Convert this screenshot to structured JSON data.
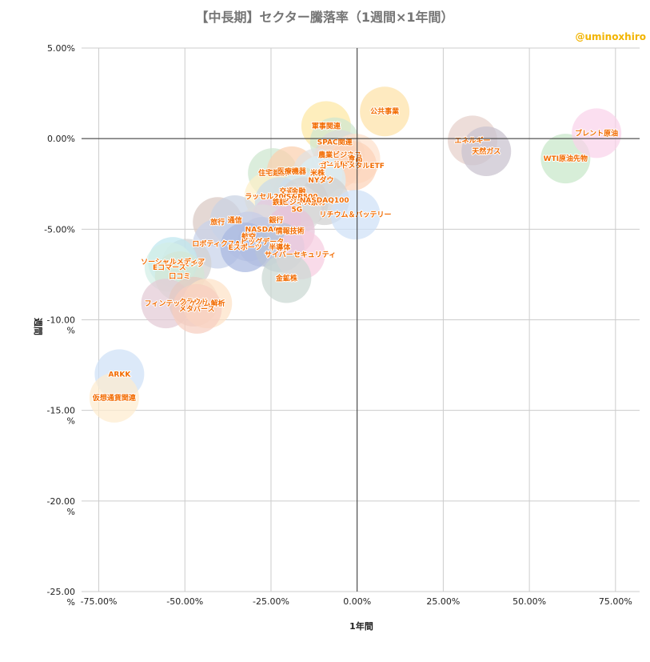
{
  "chart_data": {
    "type": "scatter",
    "title": "【中長期】セクター騰落率（1週間×1年間）",
    "credit": "@uminoxhiro",
    "xlabel": "1年間",
    "ylabel": "週間",
    "xlim": [
      -0.8,
      0.82
    ],
    "ylim": [
      -0.25,
      0.05
    ],
    "x_ticks": [
      "-75.00%",
      "-50.00%",
      "-25.00%",
      "0.00%",
      "25.00%",
      "50.00%",
      "75.00%"
    ],
    "x_tick_values": [
      -0.75,
      -0.5,
      -0.25,
      0,
      0.25,
      0.5,
      0.75
    ],
    "y_ticks": [
      "5.00%",
      "0.00%",
      "-5.00%",
      "-10.00 %",
      "-15.00 %",
      "-20.00 %",
      "-25.00 %"
    ],
    "y_tick_values": [
      0.05,
      0,
      -0.05,
      -0.1,
      -0.15,
      -0.2,
      -0.25
    ],
    "grid": true,
    "points": [
      {
        "label": "公共事業",
        "x": 0.08,
        "y": 0.015,
        "color": "#fde2a8"
      },
      {
        "label": "軍事関連",
        "x": -0.09,
        "y": 0.007,
        "color": "#fde7a3"
      },
      {
        "label": "SPAC関連",
        "x": -0.065,
        "y": -0.002,
        "color": "#cfe8d0"
      },
      {
        "label": "農業ビジネス",
        "x": -0.05,
        "y": -0.009,
        "color": "#d9d9d9"
      },
      {
        "label": "食品",
        "x": -0.005,
        "y": -0.011,
        "color": "#fde0cc"
      },
      {
        "label": "インドETF",
        "x": -0.06,
        "y": -0.014,
        "color": "#fad7c2"
      },
      {
        "label": "ゴールドメタルETF",
        "x": -0.015,
        "y": -0.015,
        "color": "#fcd2b8"
      },
      {
        "label": "住宅建設",
        "x": -0.245,
        "y": -0.019,
        "color": "#cde6cf"
      },
      {
        "label": "医療機器",
        "x": -0.19,
        "y": -0.018,
        "color": "#fbd0ae"
      },
      {
        "label": "米株",
        "x": -0.115,
        "y": -0.019,
        "color": "#e0e0e0"
      },
      {
        "label": "NYダウ",
        "x": -0.105,
        "y": -0.023,
        "color": "#d8eff7"
      },
      {
        "label": "交通",
        "x": -0.205,
        "y": -0.029,
        "color": "#d9ead3"
      },
      {
        "label": "金融",
        "x": -0.17,
        "y": -0.029,
        "color": "#cfe2cf"
      },
      {
        "label": "ラッセル2000",
        "x": -0.255,
        "y": -0.032,
        "color": "#fdf0c8"
      },
      {
        "label": "S&P500",
        "x": -0.16,
        "y": -0.032,
        "color": "#dbe7f3"
      },
      {
        "label": "鉄鋼",
        "x": -0.225,
        "y": -0.035,
        "color": "#c9d9ea"
      },
      {
        "label": "ビジネス素材",
        "x": -0.155,
        "y": -0.035,
        "color": "#d6d6d6"
      },
      {
        "label": "NASDAQ100",
        "x": -0.095,
        "y": -0.034,
        "color": "#d0d0d0"
      },
      {
        "label": "5G",
        "x": -0.175,
        "y": -0.039,
        "color": "#dcdcdc"
      },
      {
        "label": "リチウム＆バッテリー",
        "x": -0.005,
        "y": -0.042,
        "color": "#cfe0f7"
      },
      {
        "label": "旅行",
        "x": -0.405,
        "y": -0.046,
        "color": "#d9c9c3"
      },
      {
        "label": "通信",
        "x": -0.355,
        "y": -0.045,
        "color": "#c9d3e3"
      },
      {
        "label": "銀行",
        "x": -0.235,
        "y": -0.045,
        "color": "#e6c8de"
      },
      {
        "label": "NASDAQ",
        "x": -0.275,
        "y": -0.05,
        "color": "#dcdcdc"
      },
      {
        "label": "情報技術",
        "x": -0.195,
        "y": -0.051,
        "color": "#e8c3d8"
      },
      {
        "label": "航空",
        "x": -0.315,
        "y": -0.054,
        "color": "#c6cde8"
      },
      {
        "label": "ロボティクスAI",
        "x": -0.405,
        "y": -0.058,
        "color": "#c8d2ea"
      },
      {
        "label": "ビッグデータ",
        "x": -0.275,
        "y": -0.057,
        "color": "#c0c8e0"
      },
      {
        "label": "Eスポーツ",
        "x": -0.325,
        "y": -0.06,
        "color": "#a9b8e0"
      },
      {
        "label": "半導体",
        "x": -0.225,
        "y": -0.06,
        "color": "#b8c4d8"
      },
      {
        "label": "サイバーセキュリティ",
        "x": -0.165,
        "y": -0.064,
        "color": "#f6cde0"
      },
      {
        "label": "ゲーミング",
        "x": -0.495,
        "y": -0.069,
        "color": "#d1d1d1"
      },
      {
        "label": "ソーシャルメディア",
        "x": -0.535,
        "y": -0.068,
        "color": "#bfe8f0"
      },
      {
        "label": "Eコマース",
        "x": -0.545,
        "y": -0.071,
        "color": "#d3eee6"
      },
      {
        "label": "口コミ",
        "x": -0.515,
        "y": -0.076,
        "color": "#d2e6d6"
      },
      {
        "label": "金鉱株",
        "x": -0.205,
        "y": -0.077,
        "color": "#cbd8d2"
      },
      {
        "label": "フィンテック",
        "x": -0.555,
        "y": -0.091,
        "color": "#e3cbd6"
      },
      {
        "label": "クラウド",
        "x": -0.475,
        "y": -0.09,
        "color": "#e5c9c0"
      },
      {
        "label": "ゲノム解析",
        "x": -0.435,
        "y": -0.091,
        "color": "#fde2c6"
      },
      {
        "label": "メタバース",
        "x": -0.465,
        "y": -0.094,
        "color": "#f6cfc0"
      },
      {
        "label": "ARKK",
        "x": -0.69,
        "y": -0.13,
        "color": "#cfe0f7"
      },
      {
        "label": "仮想通貨関連",
        "x": -0.705,
        "y": -0.143,
        "color": "#fdeccf"
      },
      {
        "label": "エネルギー",
        "x": 0.335,
        "y": -0.001,
        "color": "#e6d0ca"
      },
      {
        "label": "天然ガス",
        "x": 0.375,
        "y": -0.007,
        "color": "#c9c2cf"
      },
      {
        "label": "WTI原油先物",
        "x": 0.605,
        "y": -0.011,
        "color": "#c8e8c9"
      },
      {
        "label": "ブレント原油",
        "x": 0.695,
        "y": 0.003,
        "color": "#fad2ea"
      }
    ]
  }
}
